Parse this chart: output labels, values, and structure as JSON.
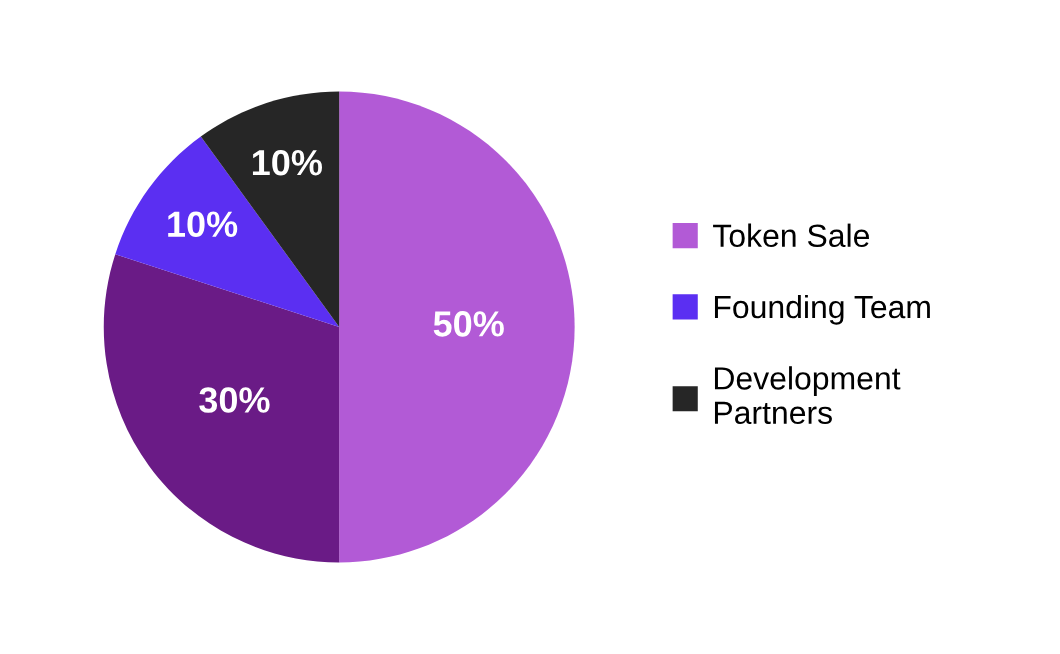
{
  "chart_data": {
    "type": "pie",
    "categories": [
      "Token Sale",
      null,
      "Founding Team",
      "Development\nPartners"
    ],
    "values": [
      50,
      30,
      10,
      10
    ],
    "colors": [
      "#b25ad6",
      "#6a1b86",
      "#5b2ff2",
      "#262626"
    ],
    "value_labels": [
      "50%",
      "30%",
      "10%",
      "10%"
    ],
    "legend": "right"
  }
}
